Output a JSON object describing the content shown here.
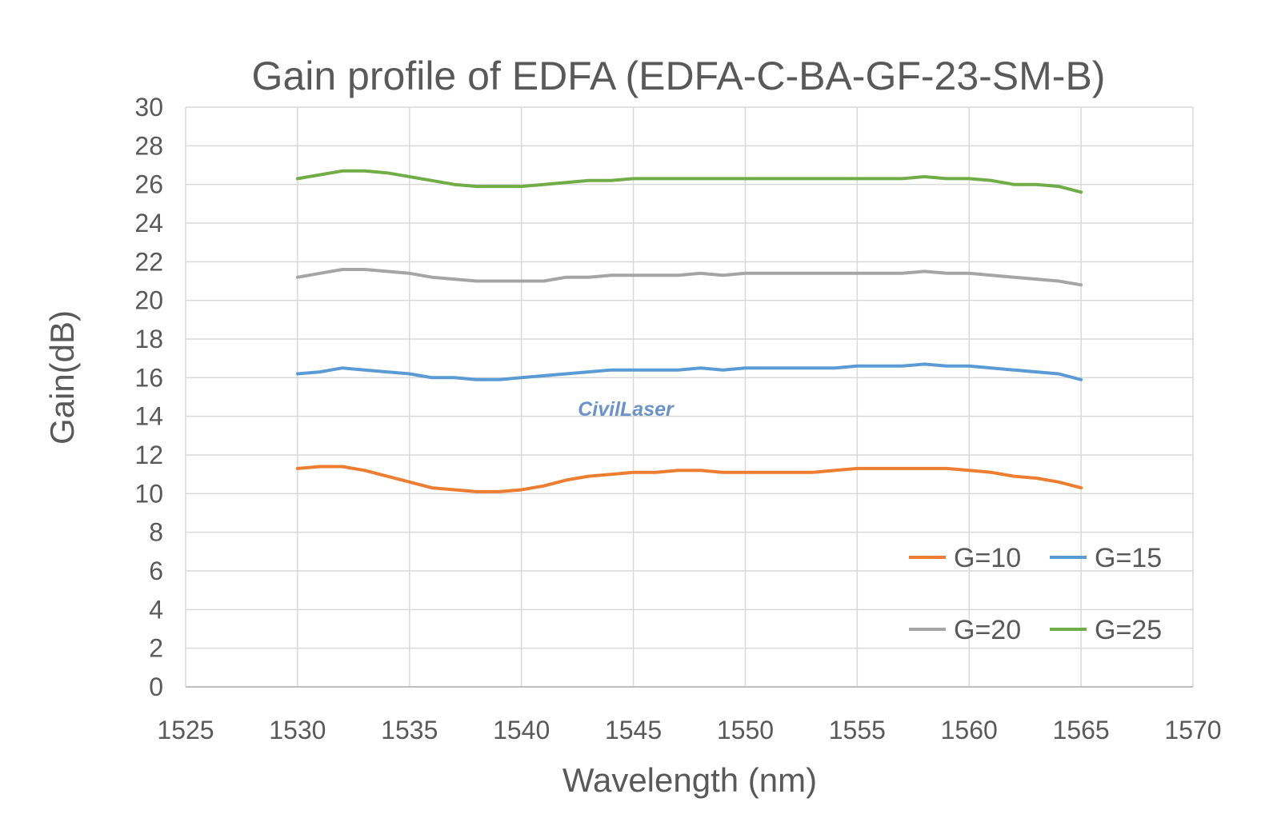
{
  "chart_data": {
    "type": "line",
    "title": "Gain profile of EDFA (EDFA-C-BA-GF-23-SM-B)",
    "xlabel": "Wavelength (nm)",
    "ylabel": "Gain(dB)",
    "xlim": [
      1525,
      1570
    ],
    "ylim": [
      0,
      30
    ],
    "xticks": [
      1525,
      1530,
      1535,
      1540,
      1545,
      1550,
      1555,
      1560,
      1565,
      1570
    ],
    "yticks": [
      0,
      2,
      4,
      6,
      8,
      10,
      12,
      14,
      16,
      18,
      20,
      22,
      24,
      26,
      28,
      30
    ],
    "grid": true,
    "legend_position": "bottom-right",
    "watermark": "CivilLaser",
    "series": [
      {
        "name": "G=10",
        "color": "#ed7d31",
        "points": [
          [
            1530,
            11.3
          ],
          [
            1531,
            11.4
          ],
          [
            1532,
            11.4
          ],
          [
            1533,
            11.2
          ],
          [
            1534,
            10.9
          ],
          [
            1535,
            10.6
          ],
          [
            1536,
            10.3
          ],
          [
            1537,
            10.2
          ],
          [
            1538,
            10.1
          ],
          [
            1539,
            10.1
          ],
          [
            1540,
            10.2
          ],
          [
            1541,
            10.4
          ],
          [
            1542,
            10.7
          ],
          [
            1543,
            10.9
          ],
          [
            1544,
            11.0
          ],
          [
            1545,
            11.1
          ],
          [
            1546,
            11.1
          ],
          [
            1547,
            11.2
          ],
          [
            1548,
            11.2
          ],
          [
            1549,
            11.1
          ],
          [
            1550,
            11.1
          ],
          [
            1551,
            11.1
          ],
          [
            1552,
            11.1
          ],
          [
            1553,
            11.1
          ],
          [
            1554,
            11.2
          ],
          [
            1555,
            11.3
          ],
          [
            1556,
            11.3
          ],
          [
            1557,
            11.3
          ],
          [
            1558,
            11.3
          ],
          [
            1559,
            11.3
          ],
          [
            1560,
            11.2
          ],
          [
            1561,
            11.1
          ],
          [
            1562,
            10.9
          ],
          [
            1563,
            10.8
          ],
          [
            1564,
            10.6
          ],
          [
            1565,
            10.3
          ]
        ]
      },
      {
        "name": "G=15",
        "color": "#5b9bd5",
        "points": [
          [
            1530,
            16.2
          ],
          [
            1531,
            16.3
          ],
          [
            1532,
            16.5
          ],
          [
            1533,
            16.4
          ],
          [
            1534,
            16.3
          ],
          [
            1535,
            16.2
          ],
          [
            1536,
            16.0
          ],
          [
            1537,
            16.0
          ],
          [
            1538,
            15.9
          ],
          [
            1539,
            15.9
          ],
          [
            1540,
            16.0
          ],
          [
            1541,
            16.1
          ],
          [
            1542,
            16.2
          ],
          [
            1543,
            16.3
          ],
          [
            1544,
            16.4
          ],
          [
            1545,
            16.4
          ],
          [
            1546,
            16.4
          ],
          [
            1547,
            16.4
          ],
          [
            1548,
            16.5
          ],
          [
            1549,
            16.4
          ],
          [
            1550,
            16.5
          ],
          [
            1551,
            16.5
          ],
          [
            1552,
            16.5
          ],
          [
            1553,
            16.5
          ],
          [
            1554,
            16.5
          ],
          [
            1555,
            16.6
          ],
          [
            1556,
            16.6
          ],
          [
            1557,
            16.6
          ],
          [
            1558,
            16.7
          ],
          [
            1559,
            16.6
          ],
          [
            1560,
            16.6
          ],
          [
            1561,
            16.5
          ],
          [
            1562,
            16.4
          ],
          [
            1563,
            16.3
          ],
          [
            1564,
            16.2
          ],
          [
            1565,
            15.9
          ]
        ]
      },
      {
        "name": "G=20",
        "color": "#a5a5a5",
        "points": [
          [
            1530,
            21.2
          ],
          [
            1531,
            21.4
          ],
          [
            1532,
            21.6
          ],
          [
            1533,
            21.6
          ],
          [
            1534,
            21.5
          ],
          [
            1535,
            21.4
          ],
          [
            1536,
            21.2
          ],
          [
            1537,
            21.1
          ],
          [
            1538,
            21.0
          ],
          [
            1539,
            21.0
          ],
          [
            1540,
            21.0
          ],
          [
            1541,
            21.0
          ],
          [
            1542,
            21.2
          ],
          [
            1543,
            21.2
          ],
          [
            1544,
            21.3
          ],
          [
            1545,
            21.3
          ],
          [
            1546,
            21.3
          ],
          [
            1547,
            21.3
          ],
          [
            1548,
            21.4
          ],
          [
            1549,
            21.3
          ],
          [
            1550,
            21.4
          ],
          [
            1551,
            21.4
          ],
          [
            1552,
            21.4
          ],
          [
            1553,
            21.4
          ],
          [
            1554,
            21.4
          ],
          [
            1555,
            21.4
          ],
          [
            1556,
            21.4
          ],
          [
            1557,
            21.4
          ],
          [
            1558,
            21.5
          ],
          [
            1559,
            21.4
          ],
          [
            1560,
            21.4
          ],
          [
            1561,
            21.3
          ],
          [
            1562,
            21.2
          ],
          [
            1563,
            21.1
          ],
          [
            1564,
            21.0
          ],
          [
            1565,
            20.8
          ]
        ]
      },
      {
        "name": "G=25",
        "color": "#70ad47",
        "points": [
          [
            1530,
            26.3
          ],
          [
            1531,
            26.5
          ],
          [
            1532,
            26.7
          ],
          [
            1533,
            26.7
          ],
          [
            1534,
            26.6
          ],
          [
            1535,
            26.4
          ],
          [
            1536,
            26.2
          ],
          [
            1537,
            26.0
          ],
          [
            1538,
            25.9
          ],
          [
            1539,
            25.9
          ],
          [
            1540,
            25.9
          ],
          [
            1541,
            26.0
          ],
          [
            1542,
            26.1
          ],
          [
            1543,
            26.2
          ],
          [
            1544,
            26.2
          ],
          [
            1545,
            26.3
          ],
          [
            1546,
            26.3
          ],
          [
            1547,
            26.3
          ],
          [
            1548,
            26.3
          ],
          [
            1549,
            26.3
          ],
          [
            1550,
            26.3
          ],
          [
            1551,
            26.3
          ],
          [
            1552,
            26.3
          ],
          [
            1553,
            26.3
          ],
          [
            1554,
            26.3
          ],
          [
            1555,
            26.3
          ],
          [
            1556,
            26.3
          ],
          [
            1557,
            26.3
          ],
          [
            1558,
            26.4
          ],
          [
            1559,
            26.3
          ],
          [
            1560,
            26.3
          ],
          [
            1561,
            26.2
          ],
          [
            1562,
            26.0
          ],
          [
            1563,
            26.0
          ],
          [
            1564,
            25.9
          ],
          [
            1565,
            25.6
          ]
        ]
      }
    ]
  }
}
